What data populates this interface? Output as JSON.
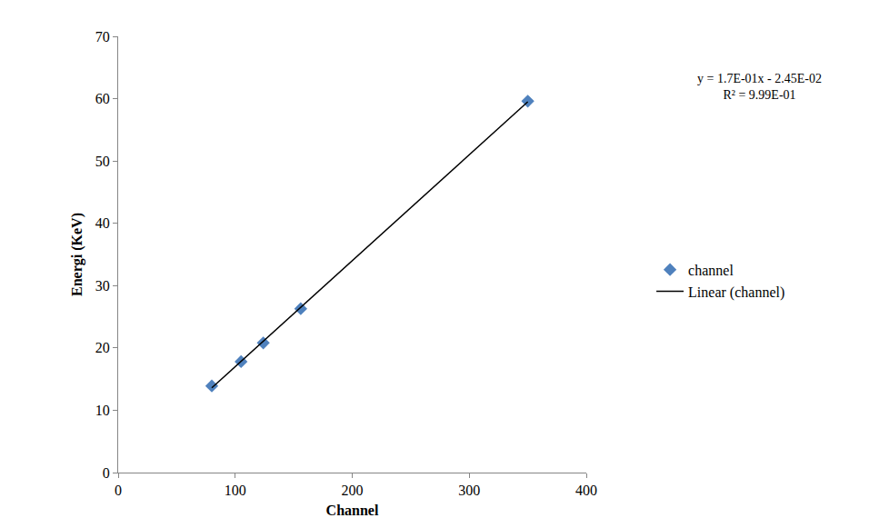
{
  "chart_data": {
    "type": "scatter",
    "x_label": "Channel",
    "y_label": "Energi (KeV)",
    "xlim": [
      0,
      400
    ],
    "xticks": [
      0,
      100,
      200,
      300,
      400
    ],
    "ylim": [
      0,
      70
    ],
    "yticks": [
      0,
      10,
      20,
      30,
      40,
      50,
      60,
      70
    ],
    "grid": false,
    "legend": "right",
    "annotations": [
      "y = 1.7E-01x - 2.45E-02",
      "R² = 9.99E-01"
    ],
    "series": [
      {
        "name": "channel",
        "type": "scatter",
        "marker": "diamond",
        "color": "#4f81bd",
        "x": [
          80,
          105,
          124,
          156,
          350
        ],
        "values": [
          13.9,
          17.8,
          20.8,
          26.3,
          59.6
        ]
      },
      {
        "name": "Linear (channel)",
        "type": "line",
        "line_style": "solid",
        "color": "#000000",
        "x": [
          80,
          350
        ],
        "values": [
          13.6,
          59.5
        ]
      }
    ]
  }
}
